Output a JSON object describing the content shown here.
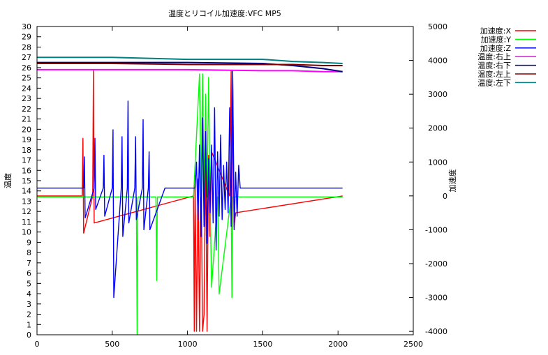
{
  "chart_data": {
    "type": "line",
    "title": "温度とリコイル加速度:VFC MP5",
    "xlabel": "",
    "ylabel": "温度",
    "y2label": "加速度",
    "xlim": [
      0,
      2500
    ],
    "ylim": [
      0,
      30
    ],
    "y2lim": [
      -4100,
      5000
    ],
    "x_ticks": [
      0,
      500,
      1000,
      1500,
      2000,
      2500
    ],
    "y_ticks": [
      0,
      1,
      2,
      3,
      4,
      5,
      6,
      7,
      8,
      9,
      10,
      11,
      12,
      13,
      14,
      15,
      16,
      17,
      18,
      19,
      20,
      21,
      22,
      23,
      24,
      25,
      26,
      27,
      28,
      29,
      30
    ],
    "y2_ticks": [
      -4000,
      -3000,
      -2000,
      -1000,
      0,
      1000,
      2000,
      3000,
      4000,
      5000
    ],
    "legend_position": "outside-right",
    "series": [
      {
        "name": "加速度:X",
        "axis": "y2",
        "color": "#ff0000",
        "x": [
          0,
          300,
          305,
          310,
          370,
          375,
          380,
          1040,
          1045,
          1050,
          1060,
          1070,
          1080,
          1090,
          1100,
          1110,
          1120,
          1130,
          1140,
          1150,
          1160,
          1280,
          1290,
          1295,
          1300,
          1310,
          1320,
          2030
        ],
        "y": [
          0,
          0,
          1700,
          -1100,
          0,
          3700,
          -800,
          0,
          -4000,
          600,
          -4000,
          500,
          -4000,
          1000,
          -4000,
          -3500,
          1300,
          -4000,
          1200,
          -1200,
          1300,
          0,
          3700,
          -1000,
          3400,
          -900,
          -500,
          0
        ]
      },
      {
        "name": "加速度:Y",
        "axis": "y2",
        "color": "#00ff00",
        "x": [
          0,
          300,
          640,
          660,
          665,
          670,
          790,
          795,
          800,
          1040,
          1080,
          1090,
          1100,
          1110,
          1120,
          1130,
          1140,
          1150,
          1160,
          1200,
          1210,
          1290,
          1295,
          1300,
          1310,
          2030
        ],
        "y": [
          -30,
          -30,
          -30,
          -30,
          -4100,
          -30,
          -30,
          -2500,
          -30,
          -30,
          3600,
          -30,
          3600,
          -30,
          3000,
          -30,
          3500,
          -30,
          -2700,
          -30,
          -2900,
          -30,
          -3000,
          -30,
          -30,
          -30
        ]
      },
      {
        "name": "加速度:Z",
        "axis": "y2",
        "color": "#0000ff",
        "x": [
          0,
          310,
          315,
          320,
          380,
          385,
          390,
          440,
          445,
          450,
          500,
          505,
          510,
          560,
          565,
          570,
          600,
          605,
          610,
          650,
          655,
          660,
          700,
          705,
          710,
          740,
          745,
          750,
          850,
          1050,
          1060,
          1070,
          1080,
          1090,
          1100,
          1110,
          1120,
          1130,
          1140,
          1150,
          1160,
          1170,
          1180,
          1190,
          1200,
          1210,
          1220,
          1230,
          1240,
          1250,
          1260,
          1270,
          1280,
          1290,
          1300,
          1310,
          1320,
          1330,
          1340,
          1350,
          2030
        ],
        "y": [
          230,
          230,
          1150,
          -650,
          230,
          1700,
          -400,
          230,
          1200,
          -600,
          230,
          1950,
          -3000,
          230,
          1750,
          -1200,
          230,
          2800,
          -800,
          230,
          1750,
          -700,
          230,
          2250,
          -1000,
          230,
          1300,
          -1000,
          230,
          230,
          1000,
          -700,
          1500,
          -1200,
          2300,
          -900,
          1900,
          -1400,
          1100,
          -500,
          1500,
          -800,
          2600,
          -1600,
          1300,
          -600,
          1800,
          -700,
          900,
          -400,
          1000,
          -500,
          2600,
          -900,
          3700,
          -1000,
          700,
          -600,
          900,
          230,
          230
        ]
      },
      {
        "name": "温度:右上",
        "axis": "y1",
        "color": "#ff00ff",
        "x": [
          0,
          500,
          1000,
          1500,
          1700,
          1900,
          2030
        ],
        "y": [
          25.8,
          25.8,
          25.8,
          25.7,
          25.7,
          25.6,
          25.6
        ]
      },
      {
        "name": "温度:右下",
        "axis": "y1",
        "color": "#000080",
        "x": [
          0,
          500,
          1000,
          1500,
          1700,
          1900,
          2030
        ],
        "y": [
          26.5,
          26.5,
          26.5,
          26.4,
          26.2,
          25.9,
          25.6
        ]
      },
      {
        "name": "温度:左上",
        "axis": "y1",
        "color": "#800000",
        "x": [
          0,
          500,
          1000,
          1500,
          1700,
          1900,
          2030
        ],
        "y": [
          26.4,
          26.4,
          26.3,
          26.3,
          26.3,
          26.2,
          26.2
        ]
      },
      {
        "name": "温度:左下",
        "axis": "y1",
        "color": "#008080",
        "x": [
          0,
          500,
          1000,
          1500,
          1700,
          1900,
          2030
        ],
        "y": [
          27.0,
          27.0,
          26.8,
          26.8,
          26.6,
          26.5,
          26.4
        ]
      }
    ]
  }
}
